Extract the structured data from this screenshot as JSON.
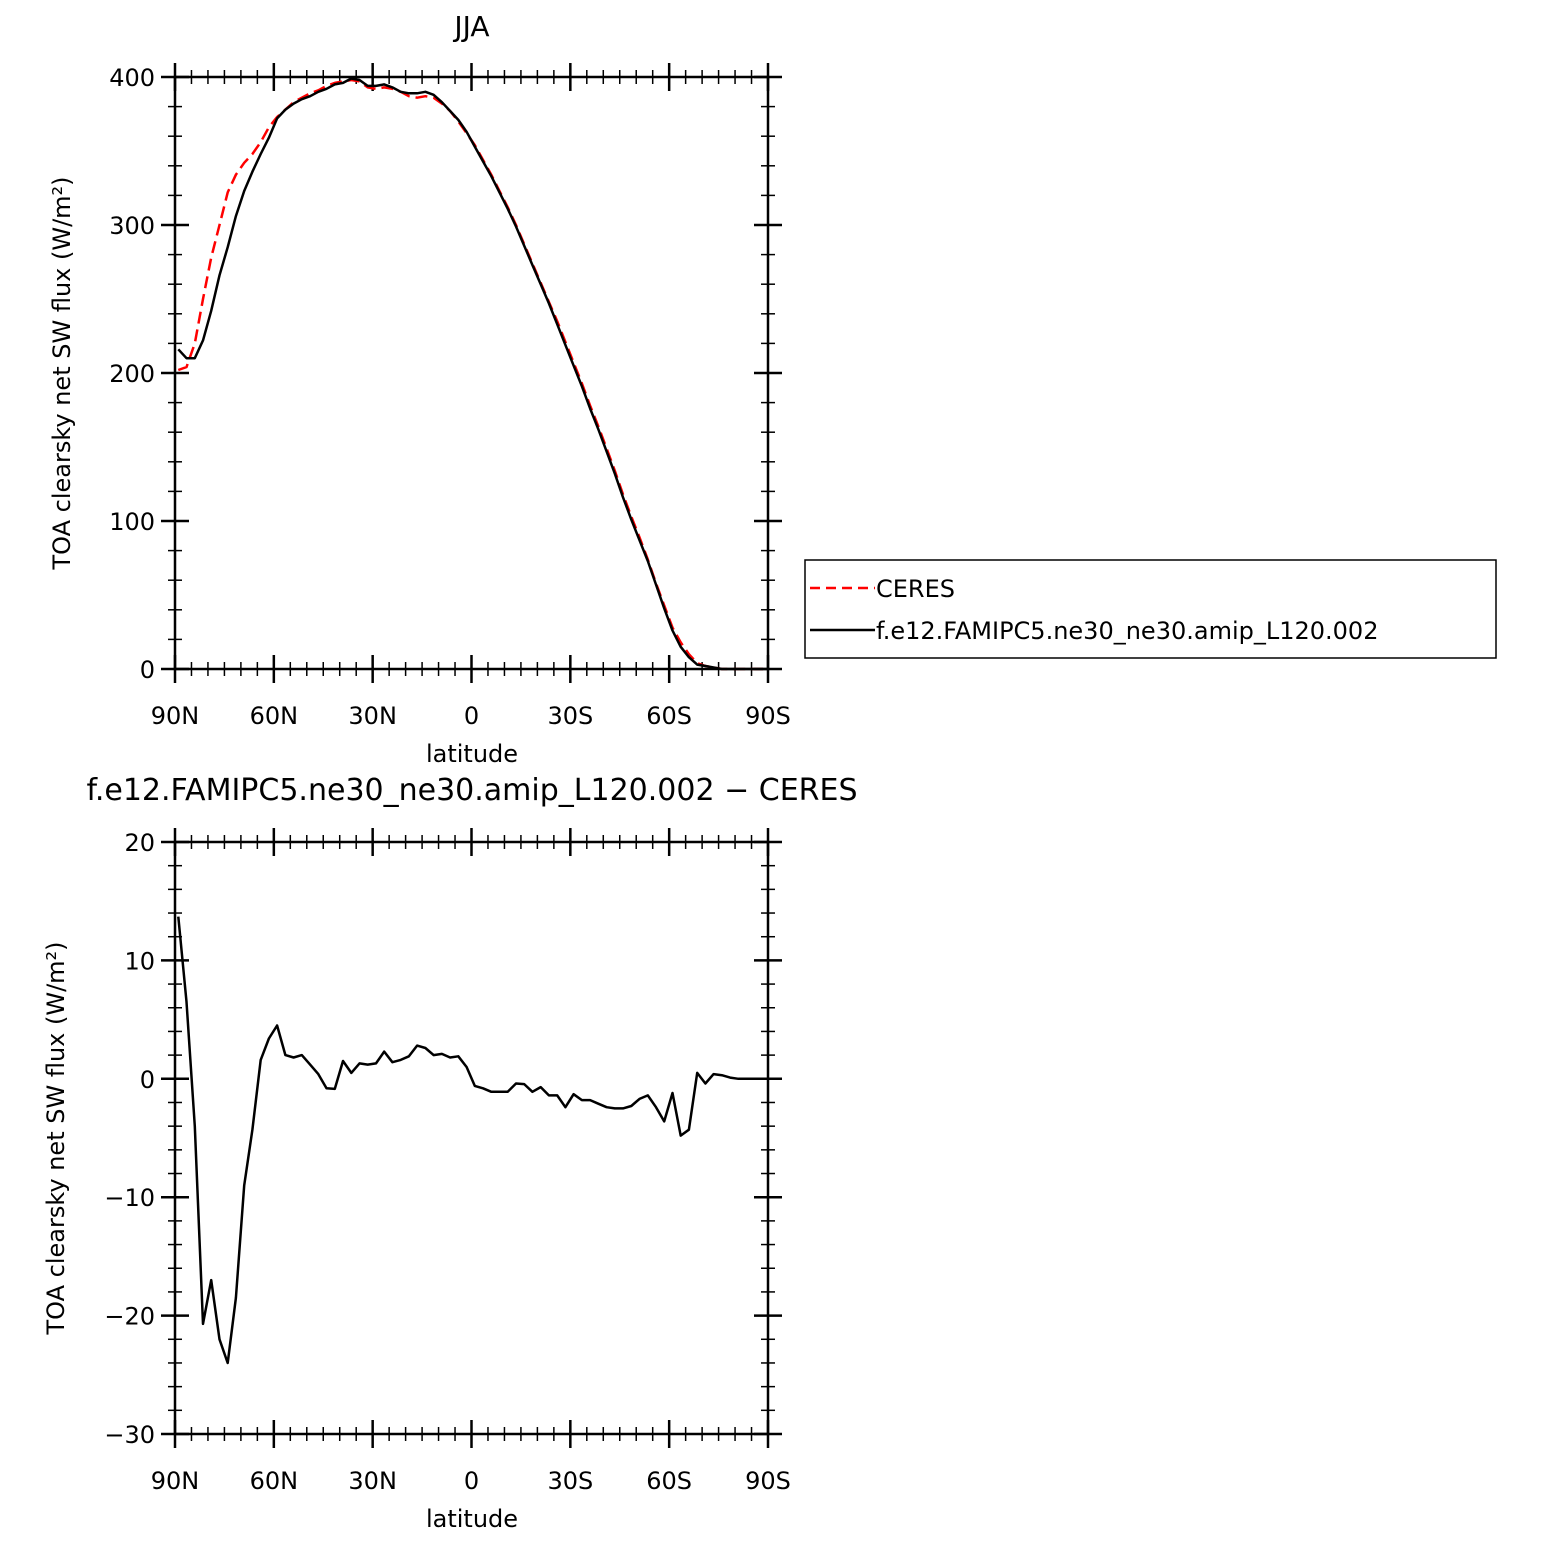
{
  "chart_data": [
    {
      "type": "line",
      "title": "JJA",
      "xlabel": "latitude",
      "ylabel": "TOA clearsky net SW flux (W/m²)",
      "ylim": [
        0,
        400
      ],
      "xlim": [
        90,
        -90
      ],
      "yticks": [
        0,
        100,
        200,
        300,
        400
      ],
      "xticks": [
        {
          "value": 90,
          "label": "90N"
        },
        {
          "value": 60,
          "label": "60N"
        },
        {
          "value": 30,
          "label": "30N"
        },
        {
          "value": 0,
          "label": "0"
        },
        {
          "value": -30,
          "label": "30S"
        },
        {
          "value": -60,
          "label": "60S"
        },
        {
          "value": -90,
          "label": "90S"
        }
      ],
      "legend_position": "right",
      "series": [
        {
          "name": "CERES",
          "color": "#ff0000",
          "style": "dashed",
          "points": [
            [
              89,
              202
            ],
            [
              86.5,
              204
            ],
            [
              84,
              220
            ],
            [
              81.5,
              250
            ],
            [
              79,
              278
            ],
            [
              76.5,
              300
            ],
            [
              74,
              322
            ],
            [
              71.5,
              334
            ],
            [
              69,
              342
            ],
            [
              66.5,
              348
            ],
            [
              64,
              356
            ],
            [
              61.5,
              366
            ],
            [
              59,
              373
            ],
            [
              56.5,
              378
            ],
            [
              54,
              383
            ],
            [
              51.5,
              386
            ],
            [
              49,
              389
            ],
            [
              46.5,
              391
            ],
            [
              44,
              394
            ],
            [
              41.5,
              396
            ],
            [
              39,
              397
            ],
            [
              36.5,
              398
            ],
            [
              34,
              397
            ],
            [
              31.5,
              393
            ],
            [
              29,
              392
            ],
            [
              26.5,
              393
            ],
            [
              24,
              392
            ],
            [
              21.5,
              390
            ],
            [
              19,
              387
            ],
            [
              16.5,
              386
            ],
            [
              14,
              387
            ],
            [
              11.5,
              386
            ],
            [
              9,
              382
            ],
            [
              6.5,
              377
            ],
            [
              4,
              370
            ],
            [
              1.5,
              362
            ],
            [
              -1,
              354
            ],
            [
              -3.5,
              344
            ],
            [
              -6,
              334
            ],
            [
              -8.5,
              323
            ],
            [
              -11,
              312
            ],
            [
              -13.5,
              300
            ],
            [
              -16,
              287
            ],
            [
              -18.5,
              274
            ],
            [
              -21,
              261
            ],
            [
              -23.5,
              248
            ],
            [
              -26,
              235
            ],
            [
              -28.5,
              221
            ],
            [
              -31,
              207
            ],
            [
              -33.5,
              193
            ],
            [
              -36,
              178
            ],
            [
              -38.5,
              164
            ],
            [
              -41,
              149
            ],
            [
              -43.5,
              134
            ],
            [
              -46,
              118
            ],
            [
              -48.5,
              103
            ],
            [
              -51,
              89
            ],
            [
              -53.5,
              74
            ],
            [
              -56,
              58
            ],
            [
              -58.5,
              43
            ],
            [
              -61,
              28
            ],
            [
              -63.5,
              18
            ],
            [
              -66,
              10
            ],
            [
              -68.5,
              4
            ],
            [
              -71,
              2
            ],
            [
              -73.5,
              1
            ],
            [
              -76,
              0
            ],
            [
              -78.5,
              0
            ],
            [
              -81,
              0
            ],
            [
              -83.5,
              0
            ],
            [
              -86,
              0
            ],
            [
              -88.5,
              0
            ]
          ]
        },
        {
          "name": "f.e12.FAMIPC5.ne30_ne30.amip_L120.002",
          "color": "#000000",
          "style": "solid",
          "points": [
            [
              89,
              216
            ],
            [
              86.5,
              210
            ],
            [
              84,
              210
            ],
            [
              81.5,
              222
            ],
            [
              79,
              242
            ],
            [
              76.5,
              266
            ],
            [
              74,
              285
            ],
            [
              71.5,
              306
            ],
            [
              69,
              323
            ],
            [
              66.5,
              336
            ],
            [
              64,
              348
            ],
            [
              61.5,
              359
            ],
            [
              59,
              372
            ],
            [
              56.5,
              378
            ],
            [
              54,
              382
            ],
            [
              51.5,
              385
            ],
            [
              49,
              387
            ],
            [
              46.5,
              390
            ],
            [
              44,
              392
            ],
            [
              41.5,
              395
            ],
            [
              39,
              396
            ],
            [
              36.5,
              399
            ],
            [
              34,
              398
            ],
            [
              31.5,
              394
            ],
            [
              29,
              394
            ],
            [
              26.5,
              395
            ],
            [
              24,
              393
            ],
            [
              21.5,
              390
            ],
            [
              19,
              389
            ],
            [
              16.5,
              389
            ],
            [
              14,
              390
            ],
            [
              11.5,
              388
            ],
            [
              9,
              383
            ],
            [
              6.5,
              377
            ],
            [
              4,
              371
            ],
            [
              1.5,
              363
            ],
            [
              -1,
              353
            ],
            [
              -3.5,
              343
            ],
            [
              -6,
              333
            ],
            [
              -8.5,
              322
            ],
            [
              -11,
              311
            ],
            [
              -13.5,
              299
            ],
            [
              -16,
              286
            ],
            [
              -18.5,
              273
            ],
            [
              -21,
              260
            ],
            [
              -23.5,
              247
            ],
            [
              -26,
              233
            ],
            [
              -28.5,
              219
            ],
            [
              -31,
              205
            ],
            [
              -33.5,
              191
            ],
            [
              -36,
              176
            ],
            [
              -38.5,
              162
            ],
            [
              -41,
              147
            ],
            [
              -43.5,
              132
            ],
            [
              -46,
              116
            ],
            [
              -48.5,
              101
            ],
            [
              -51,
              87
            ],
            [
              -53.5,
              73
            ],
            [
              -56,
              57
            ],
            [
              -58.5,
              41
            ],
            [
              -61,
              26
            ],
            [
              -63.5,
              15
            ],
            [
              -66,
              8
            ],
            [
              -68.5,
              3
            ],
            [
              -71,
              2
            ],
            [
              -73.5,
              1
            ],
            [
              -76,
              0
            ],
            [
              -78.5,
              0
            ],
            [
              -81,
              0
            ],
            [
              -83.5,
              0
            ],
            [
              -86,
              0
            ],
            [
              -88.5,
              0
            ]
          ]
        }
      ]
    },
    {
      "type": "line",
      "title": "f.e12.FAMIPC5.ne30_ne30.amip_L120.002 − CERES",
      "xlabel": "latitude",
      "ylabel": "TOA clearsky net SW flux (W/m²)",
      "ylim": [
        -30,
        20
      ],
      "xlim": [
        90,
        -90
      ],
      "yticks": [
        -30,
        -20,
        -10,
        0,
        10,
        20
      ],
      "xticks": [
        {
          "value": 90,
          "label": "90N"
        },
        {
          "value": 60,
          "label": "60N"
        },
        {
          "value": 30,
          "label": "30N"
        },
        {
          "value": 0,
          "label": "0"
        },
        {
          "value": -30,
          "label": "30S"
        },
        {
          "value": -60,
          "label": "60S"
        },
        {
          "value": -90,
          "label": "90S"
        }
      ],
      "series": [
        {
          "name": "",
          "color": "#000000",
          "style": "solid",
          "points": [
            [
              89,
              13.7
            ],
            [
              86.5,
              6.5
            ],
            [
              84,
              -4
            ],
            [
              81.5,
              -20.7
            ],
            [
              79,
              -17
            ],
            [
              76.5,
              -22
            ],
            [
              74,
              -24
            ],
            [
              71.5,
              -18.5
            ],
            [
              69,
              -9
            ],
            [
              66.5,
              -4.3
            ],
            [
              64,
              1.6
            ],
            [
              61.5,
              3.4
            ],
            [
              59,
              4.5
            ],
            [
              56.5,
              2
            ],
            [
              54,
              1.8
            ],
            [
              51.5,
              2
            ],
            [
              49,
              1.2
            ],
            [
              46.5,
              0.4
            ],
            [
              44,
              -0.8
            ],
            [
              41.5,
              -0.85
            ],
            [
              39,
              1.5
            ],
            [
              36.5,
              0.5
            ],
            [
              34,
              1.3
            ],
            [
              31.5,
              1.2
            ],
            [
              29,
              1.3
            ],
            [
              26.5,
              2.3
            ],
            [
              24,
              1.4
            ],
            [
              21.5,
              1.6
            ],
            [
              19,
              1.9
            ],
            [
              16.5,
              2.8
            ],
            [
              14,
              2.6
            ],
            [
              11.5,
              2
            ],
            [
              9,
              2.1
            ],
            [
              6.5,
              1.8
            ],
            [
              4,
              1.9
            ],
            [
              1.5,
              1
            ],
            [
              -1,
              -0.6
            ],
            [
              -3.5,
              -0.8
            ],
            [
              -6,
              -1.1
            ],
            [
              -8.5,
              -1.1
            ],
            [
              -11,
              -1.1
            ],
            [
              -13.5,
              -0.4
            ],
            [
              -16,
              -0.45
            ],
            [
              -18.5,
              -1.1
            ],
            [
              -21,
              -0.7
            ],
            [
              -23.5,
              -1.4
            ],
            [
              -26,
              -1.4
            ],
            [
              -28.5,
              -2.4
            ],
            [
              -31,
              -1.3
            ],
            [
              -33.5,
              -1.8
            ],
            [
              -36,
              -1.8
            ],
            [
              -38.5,
              -2.1
            ],
            [
              -41,
              -2.4
            ],
            [
              -43.5,
              -2.5
            ],
            [
              -46,
              -2.5
            ],
            [
              -48.5,
              -2.3
            ],
            [
              -51,
              -1.7
            ],
            [
              -53.5,
              -1.4
            ],
            [
              -56,
              -2.4
            ],
            [
              -58.5,
              -3.6
            ],
            [
              -61,
              -1.2
            ],
            [
              -63.5,
              -4.8
            ],
            [
              -66,
              -4.3
            ],
            [
              -68.5,
              0.5
            ],
            [
              -71,
              -0.4
            ],
            [
              -73.5,
              0.4
            ],
            [
              -76,
              0.3
            ],
            [
              -78.5,
              0.1
            ],
            [
              -81,
              0
            ],
            [
              -83.5,
              0
            ],
            [
              -86,
              0
            ],
            [
              -88.5,
              0
            ]
          ]
        }
      ]
    }
  ]
}
